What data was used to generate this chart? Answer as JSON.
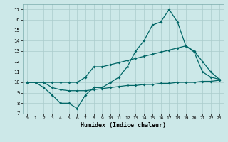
{
  "xlabel": "Humidex (Indice chaleur)",
  "background_color": "#cce8e8",
  "grid_color": "#aacccc",
  "line_color": "#006666",
  "xlim": [
    -0.5,
    23.5
  ],
  "ylim": [
    7,
    17.5
  ],
  "xticks": [
    0,
    1,
    2,
    3,
    4,
    5,
    6,
    7,
    8,
    9,
    10,
    11,
    12,
    13,
    14,
    15,
    16,
    17,
    18,
    19,
    20,
    21,
    22,
    23
  ],
  "yticks": [
    7,
    8,
    9,
    10,
    11,
    12,
    13,
    14,
    15,
    16,
    17
  ],
  "line1_x": [
    0,
    1,
    2,
    3,
    4,
    5,
    6,
    7,
    8,
    9,
    10,
    11,
    12,
    13,
    14,
    15,
    16,
    17,
    18,
    19,
    20,
    21,
    22,
    23
  ],
  "line1_y": [
    10,
    10,
    9.5,
    8.8,
    8.0,
    8.0,
    7.5,
    8.8,
    9.5,
    9.5,
    10.0,
    10.5,
    11.5,
    13.0,
    14.0,
    15.5,
    15.8,
    17.0,
    15.8,
    13.5,
    12.9,
    11.0,
    10.5,
    10.3
  ],
  "line2_x": [
    0,
    1,
    2,
    3,
    4,
    5,
    6,
    7,
    8,
    9,
    10,
    11,
    12,
    13,
    14,
    15,
    16,
    17,
    18,
    19,
    20,
    21,
    22,
    23
  ],
  "line2_y": [
    10,
    10,
    10,
    10,
    10,
    10,
    10,
    10.5,
    11.5,
    11.5,
    11.7,
    11.9,
    12.1,
    12.3,
    12.5,
    12.7,
    12.9,
    13.1,
    13.3,
    13.5,
    13.0,
    12.0,
    11.0,
    10.3
  ],
  "line3_x": [
    0,
    1,
    2,
    3,
    4,
    5,
    6,
    7,
    8,
    9,
    10,
    11,
    12,
    13,
    14,
    15,
    16,
    17,
    18,
    19,
    20,
    21,
    22,
    23
  ],
  "line3_y": [
    10,
    10,
    10,
    9.5,
    9.3,
    9.2,
    9.2,
    9.2,
    9.3,
    9.4,
    9.5,
    9.6,
    9.7,
    9.7,
    9.8,
    9.8,
    9.9,
    9.9,
    10.0,
    10.0,
    10.0,
    10.1,
    10.1,
    10.2
  ]
}
